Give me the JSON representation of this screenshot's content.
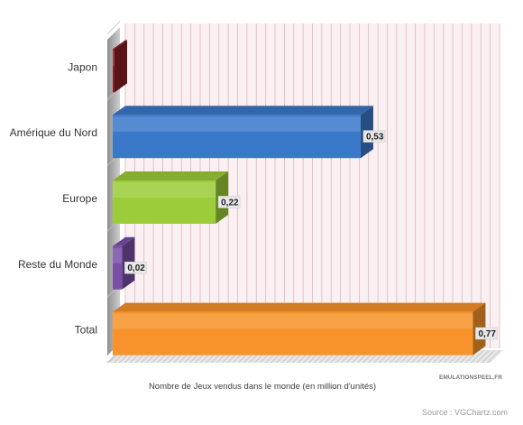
{
  "chart_data": {
    "type": "bar",
    "orientation": "horizontal",
    "categories": [
      "Japon",
      "Amérique du Nord",
      "Europe",
      "Reste du Monde",
      "Total"
    ],
    "values": [
      0,
      0.53,
      0.22,
      0.02,
      0.77
    ],
    "data_labels": [
      "",
      "0,53",
      "0,22",
      "0,02",
      "0,77"
    ],
    "xlabel": "Nombre de Jeux vendus dans le monde (en million d'unités)",
    "ylabel": "",
    "xlim": [
      0,
      0.8
    ],
    "grid": true,
    "legend": "none",
    "colors": [
      "#8b1e24",
      "#3a78c9",
      "#9ccc3a",
      "#7a4fa8",
      "#f7932a"
    ]
  },
  "watermark": "EMULATIONSPEEL.FR",
  "source": "Source : VGChartz.com"
}
